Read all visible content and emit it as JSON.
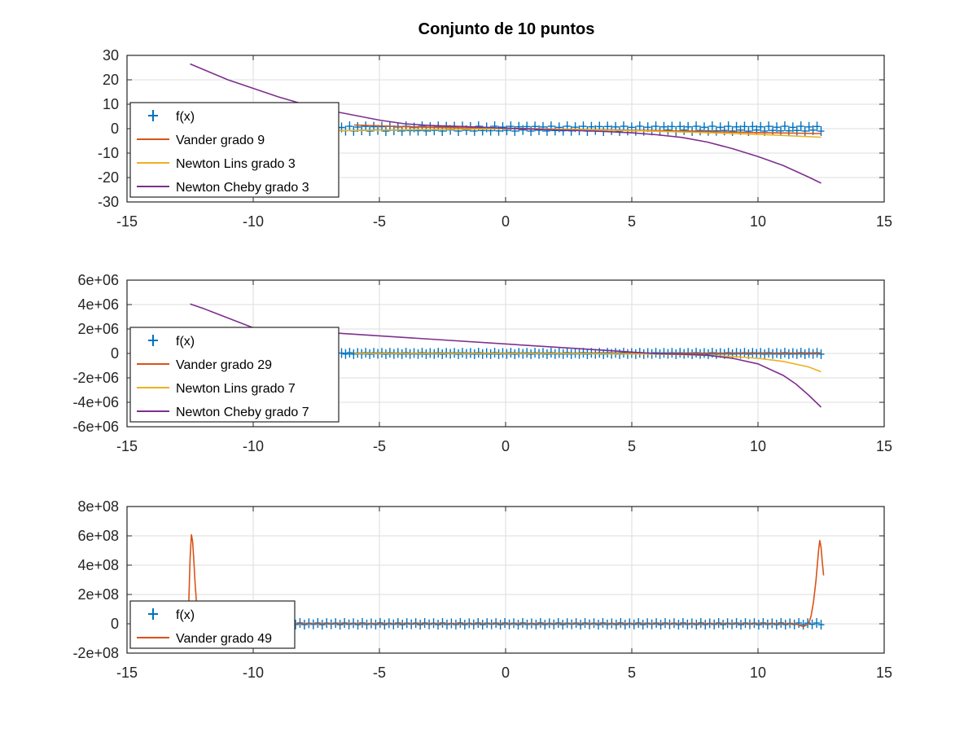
{
  "figure": {
    "title": "Conjunto de 10 puntos"
  },
  "colors": {
    "fx": "#0072BD",
    "vander": "#D95319",
    "lins": "#EDB120",
    "cheby": "#7E2F8E",
    "grid": "#dedede",
    "axis": "#262626"
  },
  "chart_data": [
    {
      "type": "line",
      "title": "Conjunto de 10 puntos",
      "xlim": [
        -15,
        15
      ],
      "ylim": [
        -30,
        30
      ],
      "xticks": [
        -15,
        -10,
        -5,
        0,
        5,
        10,
        15
      ],
      "yticks": [
        -30,
        -20,
        -10,
        0,
        10,
        20,
        30
      ],
      "ytick_labels": [
        "-30",
        "-20",
        "-10",
        "0",
        "10",
        "20",
        "30"
      ],
      "xtick_labels": [
        "-15",
        "-10",
        "-5",
        "0",
        "5",
        "10",
        "15"
      ],
      "grid": true,
      "legend_position": "west",
      "fx_marker_region": {
        "x_start": -6.5,
        "x_end": 12.5,
        "count": 120,
        "amplitude": 1
      },
      "series": [
        {
          "name": "f(x)",
          "style": "marker",
          "color_key": "fx"
        },
        {
          "name": "Vander grado 9",
          "style": "line",
          "color_key": "vander",
          "x": [
            -6,
            -4,
            -2,
            0,
            2,
            4,
            6,
            8,
            10,
            12.5
          ],
          "y": [
            1.5,
            0.8,
            0.4,
            0.2,
            -0.2,
            -0.5,
            -0.8,
            -1.2,
            -1.6,
            -2
          ]
        },
        {
          "name": "Newton Lins grado 3",
          "style": "line",
          "color_key": "lins",
          "x": [
            -12.5,
            -10,
            -7.5,
            -5,
            -2.5,
            0,
            2.5,
            5,
            7.5,
            10,
            12.5
          ],
          "y": [
            -1.5,
            -1.2,
            -0.9,
            -0.6,
            -0.3,
            0,
            -0.3,
            -0.8,
            -1.5,
            -2.3,
            -3.5
          ]
        },
        {
          "name": "Newton Cheby grado 3",
          "style": "line",
          "color_key": "cheby",
          "x": [
            -12.5,
            -11,
            -10,
            -9,
            -8,
            -7,
            -6,
            -5,
            -4,
            -3,
            -2,
            -1,
            0,
            1,
            2,
            3,
            4,
            5,
            6,
            7,
            8,
            9,
            10,
            11,
            12,
            12.5
          ],
          "y": [
            26.5,
            20,
            16.5,
            13,
            10,
            7.5,
            5.5,
            3.5,
            2,
            1.3,
            1,
            0.6,
            0.2,
            -0.2,
            -0.5,
            -0.8,
            -1.2,
            -1.7,
            -2.5,
            -3.6,
            -5.5,
            -8.2,
            -11.4,
            -15.1,
            -19.8,
            -22.3
          ]
        }
      ]
    },
    {
      "type": "line",
      "xlim": [
        -15,
        15
      ],
      "ylim": [
        -6000000,
        6000000
      ],
      "xticks": [
        -15,
        -10,
        -5,
        0,
        5,
        10,
        15
      ],
      "yticks": [
        -6000000,
        -4000000,
        -2000000,
        0,
        2000000,
        4000000,
        6000000
      ],
      "ytick_labels": [
        "-6e+06",
        "-4e+06",
        "-2e+06",
        "0",
        "2e+06",
        "4e+06",
        "6e+06"
      ],
      "xtick_labels": [
        "-15",
        "-10",
        "-5",
        "0",
        "5",
        "10",
        "15"
      ],
      "grid": true,
      "legend_position": "west",
      "fx_marker_region": {
        "x_start": -6.5,
        "x_end": 12.5,
        "count": 120,
        "amplitude": 60000
      },
      "series": [
        {
          "name": "f(x)",
          "style": "marker",
          "color_key": "fx"
        },
        {
          "name": "Vander grado 29",
          "style": "line",
          "color_key": "vander",
          "x": [
            -6,
            -2,
            2,
            6,
            8,
            10,
            12.5
          ],
          "y": [
            0,
            0,
            0,
            0,
            0,
            0,
            0
          ]
        },
        {
          "name": "Newton Lins grado 7",
          "style": "line",
          "color_key": "lins",
          "x": [
            -6,
            -2,
            2,
            6,
            8,
            9,
            10,
            11,
            12,
            12.5
          ],
          "y": [
            0,
            0,
            0,
            -50000,
            -150000,
            -250000,
            -400000,
            -650000,
            -1100000,
            -1500000
          ]
        },
        {
          "name": "Newton Cheby grado 7",
          "style": "line",
          "color_key": "cheby",
          "x": [
            -12.5,
            -12,
            -11.5,
            -11,
            -10.5,
            -10,
            6,
            7,
            8,
            9,
            10,
            11,
            11.5,
            12,
            12.5
          ],
          "y": [
            4050000,
            3700000,
            3300000,
            2900000,
            2500000,
            2100000,
            -20000,
            -60000,
            -150000,
            -400000,
            -850000,
            -1800000,
            -2500000,
            -3400000,
            -4400000
          ]
        }
      ]
    },
    {
      "type": "line",
      "xlim": [
        -15,
        15
      ],
      "ylim": [
        -200000000,
        800000000
      ],
      "xticks": [
        -15,
        -10,
        -5,
        0,
        5,
        10,
        15
      ],
      "yticks": [
        -200000000,
        0,
        200000000,
        400000000,
        600000000,
        800000000
      ],
      "ytick_labels": [
        "-2e+08",
        "0",
        "2e+08",
        "4e+08",
        "6e+08",
        "8e+08"
      ],
      "xtick_labels": [
        "-15",
        "-10",
        "-5",
        "0",
        "5",
        "10",
        "15"
      ],
      "grid": true,
      "legend_position": "southwest",
      "fx_marker_region": {
        "x_start": -8.5,
        "x_end": 12.5,
        "count": 120,
        "amplitude": 6000000
      },
      "series": [
        {
          "name": "f(x)",
          "style": "marker",
          "color_key": "fx"
        },
        {
          "name": "Vander grado 49",
          "style": "line",
          "color_key": "vander",
          "x": [
            -12.6,
            -12.55,
            -12.5,
            -12.45,
            -12.4,
            -12.35,
            -12.3,
            -12.25,
            -12.2,
            -12.1,
            -12.0,
            -11.5,
            0,
            11.5,
            11.8,
            12.0,
            12.1,
            12.2,
            12.3,
            12.4,
            12.45,
            12.5,
            12.55,
            12.6
          ],
          "y": [
            0,
            150000000,
            450000000,
            610000000,
            560000000,
            420000000,
            270000000,
            150000000,
            70000000,
            20000000,
            0,
            0,
            0,
            0,
            -20000000,
            0,
            50000000,
            150000000,
            300000000,
            500000000,
            570000000,
            520000000,
            420000000,
            330000000
          ]
        }
      ]
    }
  ]
}
